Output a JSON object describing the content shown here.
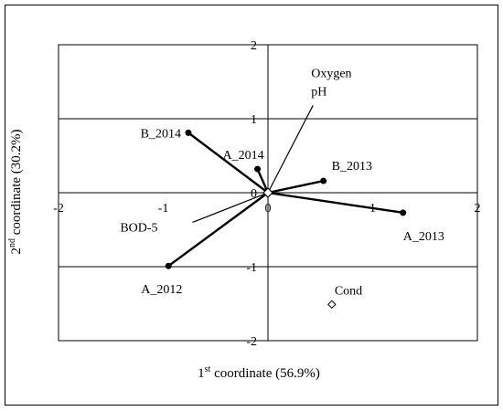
{
  "chart_data": {
    "type": "scatter",
    "xlabel_prefix": "1",
    "xlabel_sup": "st",
    "xlabel_rest": " coordinate (56.9%)",
    "ylabel_prefix": "2",
    "ylabel_sup": "nd",
    "ylabel_rest": " coordinate (30.2%)",
    "xlim": [
      -2,
      2
    ],
    "ylim": [
      -2,
      2
    ],
    "xticks": [
      -2,
      -1,
      0,
      1,
      2
    ],
    "yticks": [
      -2,
      -1,
      0,
      1,
      2
    ],
    "xtick_labels": [
      "-2",
      "-1",
      "0",
      "1",
      "2"
    ],
    "ytick_labels": [
      "-2",
      "-1",
      "0",
      "1",
      "2"
    ],
    "grid": "horizontal",
    "samples": [
      {
        "label": "B_2014",
        "x": -0.76,
        "y": 0.81
      },
      {
        "label": "A_2014",
        "x": -0.1,
        "y": 0.32
      },
      {
        "label": "B_2013",
        "x": 0.53,
        "y": 0.16
      },
      {
        "label": "A_2013",
        "x": 1.29,
        "y": -0.27
      },
      {
        "label": "A_2012",
        "x": -0.95,
        "y": -0.99
      }
    ],
    "variables": [
      {
        "label": "Oxygen",
        "x": 0.43,
        "y": 1.18
      },
      {
        "label": "pH",
        "x": 0.43,
        "y": 1.18
      },
      {
        "label": "BOD-5",
        "x": -0.72,
        "y": -0.4
      },
      {
        "label": "Cond",
        "x": 0.61,
        "y": -1.51
      }
    ],
    "origin": {
      "x": 0,
      "y": 0
    }
  },
  "colors": {
    "axis": "#000000",
    "grid": "#000000",
    "series": "#000000"
  }
}
